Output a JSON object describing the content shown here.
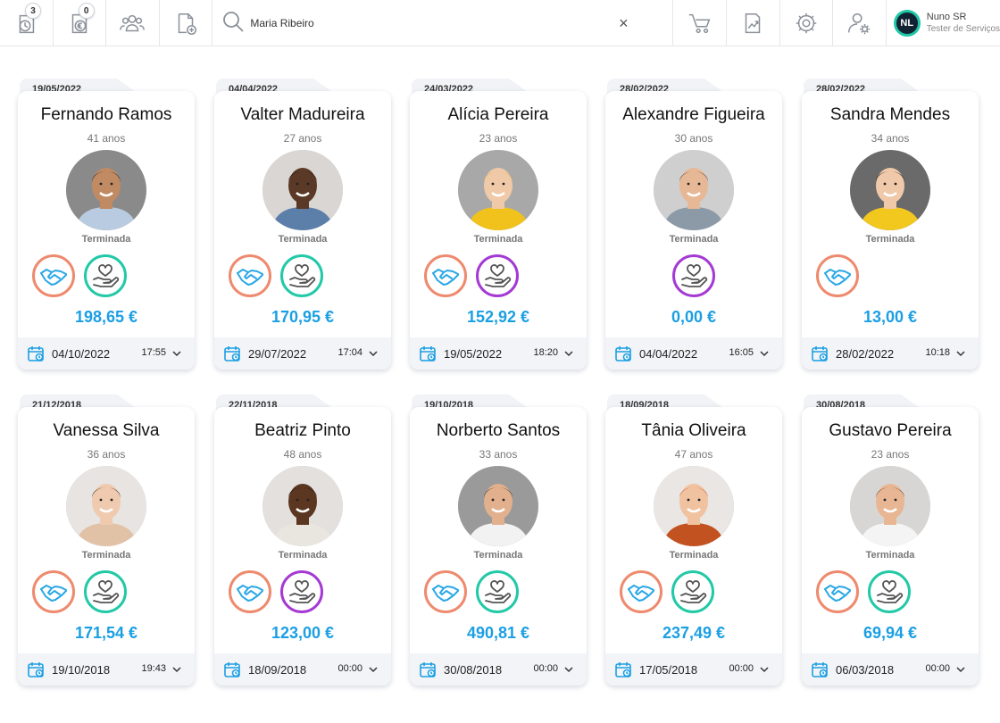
{
  "toolbar": {
    "buttons": [
      {
        "name": "timer-clock-icon",
        "badge": "3"
      },
      {
        "name": "euro-document-icon",
        "badge": "0"
      },
      {
        "name": "users-group-icon",
        "badge": null
      },
      {
        "name": "add-document-icon",
        "badge": null
      }
    ],
    "search": {
      "value": "Maria Ribeiro",
      "clear_label": "×"
    },
    "right_buttons": [
      {
        "name": "cart-icon"
      },
      {
        "name": "chart-icon"
      },
      {
        "name": "gear-icon"
      },
      {
        "name": "user-settings-icon"
      }
    ],
    "user": {
      "initials": "NL",
      "name": "Nuno SR",
      "role": "Tester de Serviços"
    }
  },
  "colors": {
    "accent_blue": "#1b9fe3",
    "hand_orange": "#ee8a6e",
    "heart_teal": "#22c9a7",
    "heart_purple": "#a43ad3"
  },
  "cards": [
    {
      "date": "19/05/2022",
      "name": "Fernando Ramos",
      "age": "41 anos",
      "status": "Terminada",
      "icons": [
        "hand",
        "heart-teal"
      ],
      "price": "198,65 €",
      "foot_date": "04/10/2022",
      "foot_time": "17:55",
      "photo": {
        "bg": "#8a8a8a",
        "skin": "#c08a63",
        "hair": "#2a1d15",
        "shirt": "#b9cbe0"
      }
    },
    {
      "date": "04/04/2022",
      "name": "Valter Madureira",
      "age": "27 anos",
      "status": "Terminada",
      "icons": [
        "hand",
        "heart-teal"
      ],
      "price": "170,95 €",
      "foot_date": "29/07/2022",
      "foot_time": "17:04",
      "photo": {
        "bg": "#d9d6d3",
        "skin": "#5a3a26",
        "hair": "#1a110c",
        "shirt": "#5b7fa8"
      }
    },
    {
      "date": "24/03/2022",
      "name": "Alícia Pereira",
      "age": "23 anos",
      "status": "Terminada",
      "icons": [
        "hand",
        "heart-purple"
      ],
      "price": "152,92 €",
      "foot_date": "19/05/2022",
      "foot_time": "18:20",
      "photo": {
        "bg": "#a8a8a8",
        "skin": "#f0c9a8",
        "hair": "#e1b35a",
        "shirt": "#f1c21b"
      }
    },
    {
      "date": "28/02/2022",
      "name": "Alexandre Figueira",
      "age": "30 anos",
      "status": "Terminada",
      "icons": [
        "heart-purple"
      ],
      "price": "0,00 €",
      "foot_date": "04/04/2022",
      "foot_time": "16:05",
      "photo": {
        "bg": "#cfcfcf",
        "skin": "#e6b896",
        "hair": "#4a3424",
        "shirt": "#8c9aa8"
      }
    },
    {
      "date": "28/02/2022",
      "name": "Sandra Mendes",
      "age": "34 anos",
      "status": "Terminada",
      "icons": [
        "hand"
      ],
      "price": "13,00 €",
      "foot_date": "28/02/2022",
      "foot_time": "10:18",
      "photo": {
        "bg": "#6a6a6a",
        "skin": "#efc9a9",
        "hair": "#1b1410",
        "shirt": "#f2c81f"
      }
    },
    {
      "date": "21/12/2018",
      "name": "Vanessa Silva",
      "age": "36 anos",
      "status": "Terminada",
      "icons": [
        "hand",
        "heart-teal"
      ],
      "price": "171,54 €",
      "foot_date": "19/10/2018",
      "foot_time": "19:43",
      "photo": {
        "bg": "#e7e4e2",
        "skin": "#efcaae",
        "hair": "#241a14",
        "shirt": "#e2c2a6"
      }
    },
    {
      "date": "22/11/2018",
      "name": "Beatriz Pinto",
      "age": "48 anos",
      "status": "Terminada",
      "icons": [
        "hand",
        "heart-purple"
      ],
      "price": "123,00 €",
      "foot_date": "18/09/2018",
      "foot_time": "00:00",
      "photo": {
        "bg": "#e3e0de",
        "skin": "#5b3620",
        "hair": "#120c08",
        "shirt": "#e9e6e0"
      }
    },
    {
      "date": "19/10/2018",
      "name": "Norberto Santos",
      "age": "33 anos",
      "status": "Terminada",
      "icons": [
        "hand",
        "heart-teal"
      ],
      "price": "490,81 €",
      "foot_date": "30/08/2018",
      "foot_time": "00:00",
      "photo": {
        "bg": "#9a9a9a",
        "skin": "#e2b08c",
        "hair": "#3a2a20",
        "shirt": "#f2f2f2"
      }
    },
    {
      "date": "18/09/2018",
      "name": "Tânia Oliveira",
      "age": "47 anos",
      "status": "Terminada",
      "icons": [
        "hand",
        "heart-teal"
      ],
      "price": "237,49 €",
      "foot_date": "17/05/2018",
      "foot_time": "00:00",
      "photo": {
        "bg": "#e9e6e4",
        "skin": "#f1c2a0",
        "hair": "#c2521f",
        "shirt": "#c2521f"
      }
    },
    {
      "date": "30/08/2018",
      "name": "Gustavo Pereira",
      "age": "23 anos",
      "status": "Terminada",
      "icons": [
        "hand",
        "heart-teal"
      ],
      "price": "69,94 €",
      "foot_date": "06/03/2018",
      "foot_time": "00:00",
      "photo": {
        "bg": "#d8d6d4",
        "skin": "#e8b692",
        "hair": "#5a3a22",
        "shirt": "#f4f4f4"
      }
    }
  ]
}
